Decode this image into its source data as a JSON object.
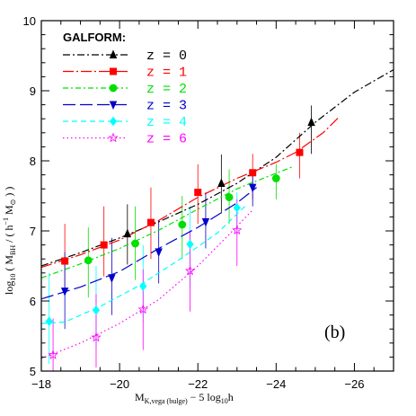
{
  "chart_data": {
    "type": "line",
    "legend_title": "GALFORM:",
    "legend_placement": "top-left",
    "panel_label": "(b)",
    "xlabel": {
      "main": "M",
      "sub": "K,vega (bulge)",
      "rest": " − 5 log",
      "sub2": "10",
      "rest2": "h"
    },
    "ylabel": {
      "pre": "log",
      "sub1": "10",
      "mid": " ( M",
      "sub2": "BH",
      "mid2": " / ( h",
      "sup": "−1",
      "mid3": " M",
      "sub3": "⊙",
      "post": " ) )"
    },
    "xlim": [
      -18,
      -27
    ],
    "ylim": [
      5,
      10
    ],
    "x_ticks": [
      -18,
      -20,
      -22,
      -24,
      -26
    ],
    "x_tick_labels": [
      "−18",
      "−20",
      "−22",
      "−24",
      "−26"
    ],
    "y_ticks": [
      5,
      6,
      7,
      8,
      9,
      10
    ],
    "y_tick_labels": [
      "5",
      "6",
      "7",
      "8",
      "9",
      "10"
    ],
    "grid": false,
    "series": [
      {
        "name": "z = 0",
        "color": "#000000",
        "dash": "8,3,2,3",
        "marker": "triangle",
        "x": [
          -18.0,
          -19.0,
          -20.0,
          -21.0,
          -22.0,
          -23.0,
          -24.0,
          -25.0,
          -26.0,
          -27.0
        ],
        "y": [
          6.5,
          6.69,
          6.9,
          7.13,
          7.38,
          7.68,
          8.05,
          8.55,
          8.98,
          9.3
        ],
        "markers": [
          {
            "x": -20.2,
            "y": 6.96,
            "lo": 6.52,
            "hi": 7.38
          },
          {
            "x": -22.6,
            "y": 7.68,
            "lo": 7.25,
            "hi": 8.09
          },
          {
            "x": -24.9,
            "y": 8.55,
            "lo": 8.1,
            "hi": 8.79
          }
        ]
      },
      {
        "name": "z = 1",
        "color": "#ff0000",
        "dash": "12,3,2,3",
        "marker": "square",
        "x": [
          -18.0,
          -19.0,
          -20.0,
          -21.0,
          -22.0,
          -23.0,
          -24.0,
          -24.5,
          -25.2,
          -25.6
        ],
        "y": [
          6.48,
          6.66,
          6.87,
          7.15,
          7.48,
          7.75,
          7.98,
          8.12,
          8.4,
          8.62
        ],
        "markers": [
          {
            "x": -18.6,
            "y": 6.57,
            "lo": 6.15,
            "hi": 7.1
          },
          {
            "x": -19.6,
            "y": 6.8,
            "lo": 6.35,
            "hi": 7.35
          },
          {
            "x": -20.8,
            "y": 7.12,
            "lo": 6.6,
            "hi": 7.62
          },
          {
            "x": -22.0,
            "y": 7.55,
            "lo": 7.1,
            "hi": 7.95
          },
          {
            "x": -23.4,
            "y": 7.83,
            "lo": 7.45,
            "hi": 8.1
          },
          {
            "x": -24.6,
            "y": 8.12,
            "lo": 7.75,
            "hi": 8.4
          }
        ]
      },
      {
        "name": "z = 2",
        "color": "#00e000",
        "dash": "6,3,2,3",
        "marker": "circle",
        "x": [
          -18.0,
          -19.0,
          -20.0,
          -21.0,
          -22.0,
          -23.0,
          -23.8,
          -24.4
        ],
        "y": [
          6.33,
          6.53,
          6.75,
          7.01,
          7.31,
          7.6,
          7.78,
          7.91
        ],
        "markers": [
          {
            "x": -19.2,
            "y": 6.58,
            "lo": 6.05,
            "hi": 7.05
          },
          {
            "x": -20.4,
            "y": 6.82,
            "lo": 6.3,
            "hi": 7.35
          },
          {
            "x": -21.6,
            "y": 7.09,
            "lo": 6.6,
            "hi": 7.5
          },
          {
            "x": -22.8,
            "y": 7.48,
            "lo": 7.1,
            "hi": 7.88
          },
          {
            "x": -24.0,
            "y": 7.75,
            "lo": 7.45,
            "hi": 7.95
          }
        ]
      },
      {
        "name": "z = 3",
        "color": "#0000cc",
        "dash": "14,5",
        "marker": "triangle-down",
        "x": [
          -18.0,
          -19.0,
          -20.0,
          -21.0,
          -22.0,
          -23.0,
          -23.5
        ],
        "y": [
          6.03,
          6.2,
          6.42,
          6.75,
          7.05,
          7.4,
          7.62
        ],
        "markers": [
          {
            "x": -18.6,
            "y": 6.14,
            "lo": 5.6,
            "hi": 6.7
          },
          {
            "x": -19.8,
            "y": 6.33,
            "lo": 5.8,
            "hi": 6.9
          },
          {
            "x": -21.0,
            "y": 6.7,
            "lo": 6.25,
            "hi": 7.15
          },
          {
            "x": -22.2,
            "y": 7.13,
            "lo": 6.75,
            "hi": 7.55
          },
          {
            "x": -23.4,
            "y": 7.62,
            "lo": 7.35,
            "hi": 7.78
          }
        ]
      },
      {
        "name": "z = 4",
        "color": "#00ffff",
        "dash": "6,4",
        "marker": "diamond",
        "x": [
          -18.0,
          -18.6,
          -19.5,
          -20.5,
          -21.5,
          -22.5,
          -23.2
        ],
        "y": [
          5.68,
          5.7,
          5.92,
          6.22,
          6.58,
          6.97,
          7.35
        ],
        "markers": [
          {
            "x": -18.2,
            "y": 5.71,
            "lo": 5.1,
            "hi": 6.4
          },
          {
            "x": -19.4,
            "y": 5.87,
            "lo": 5.35,
            "hi": 6.5
          },
          {
            "x": -20.6,
            "y": 6.21,
            "lo": 5.7,
            "hi": 6.8
          },
          {
            "x": -21.8,
            "y": 6.81,
            "lo": 6.2,
            "hi": 7.35
          },
          {
            "x": -23.0,
            "y": 7.33,
            "lo": 6.95,
            "hi": 7.55
          }
        ]
      },
      {
        "name": "z = 6",
        "color": "#ff00ff",
        "dash": "1.5,3",
        "marker": "star",
        "x": [
          -18.0,
          -19.0,
          -20.0,
          -21.0,
          -22.0,
          -22.8,
          -23.4
        ],
        "y": [
          5.18,
          5.4,
          5.68,
          6.02,
          6.5,
          6.95,
          7.3
        ],
        "markers": [
          {
            "x": -18.3,
            "y": 5.23,
            "lo": 5.0,
            "hi": 5.75
          },
          {
            "x": -19.4,
            "y": 5.48,
            "lo": 5.05,
            "hi": 6.1
          },
          {
            "x": -20.6,
            "y": 5.88,
            "lo": 5.3,
            "hi": 6.45
          },
          {
            "x": -21.8,
            "y": 6.43,
            "lo": 5.85,
            "hi": 7.0
          },
          {
            "x": -23.0,
            "y": 7.01,
            "lo": 6.5,
            "hi": 7.45
          }
        ]
      }
    ]
  }
}
